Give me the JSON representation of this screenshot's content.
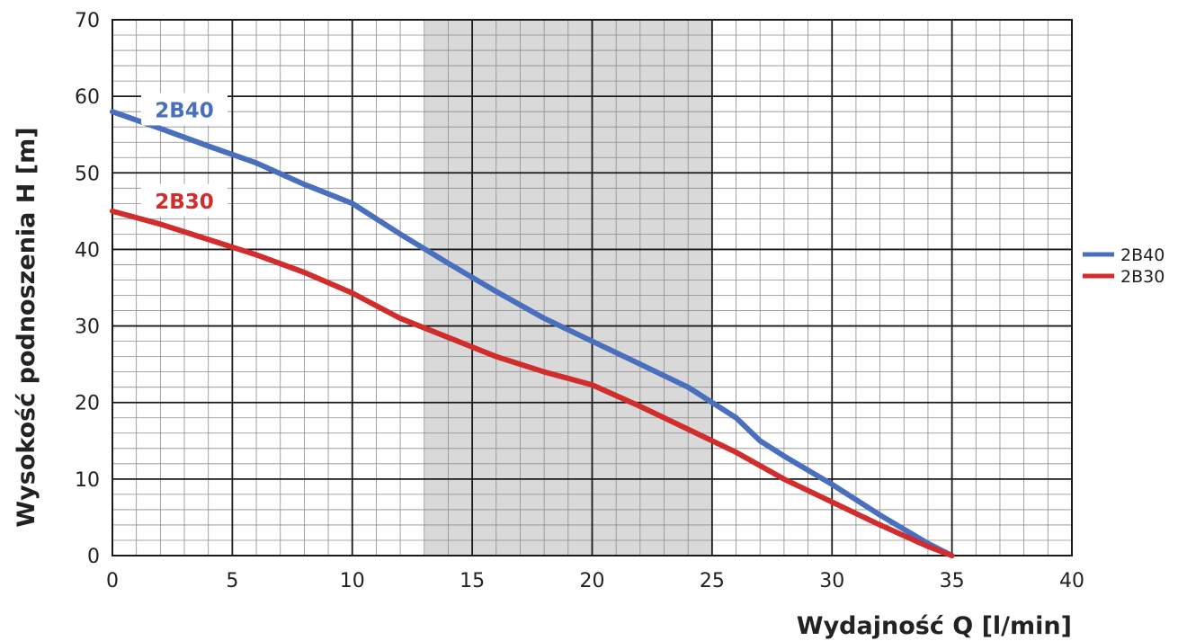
{
  "chart_data": {
    "type": "line",
    "xlabel": "Wydajność Q [l/min]",
    "ylabel": "Wysokość podnoszenia H [m]",
    "xlim": [
      0,
      40
    ],
    "ylim": [
      0,
      70
    ],
    "x_ticks": [
      0,
      5,
      10,
      15,
      20,
      25,
      30,
      35,
      40
    ],
    "y_ticks": [
      0,
      10,
      20,
      30,
      40,
      50,
      60,
      70
    ],
    "x_tick_labels": [
      "0",
      "5",
      "10",
      "15",
      "20",
      "25",
      "30",
      "35",
      "40"
    ],
    "y_tick_labels": [
      "0",
      "10",
      "20",
      "30",
      "40",
      "50",
      "60",
      "70"
    ],
    "grid": true,
    "legend_position": "right",
    "shaded_range": [
      13,
      25
    ],
    "shaded_color": "#d9d9d9",
    "series": [
      {
        "name": "2B40",
        "color": "#4a6fbd",
        "x": [
          0,
          2,
          4,
          6,
          8,
          10,
          12,
          14,
          16,
          18,
          20,
          22,
          24,
          25,
          26,
          27,
          28,
          30,
          32,
          34,
          35
        ],
        "y": [
          58,
          55.8,
          53.5,
          51.3,
          48.5,
          46,
          42,
          38.2,
          34.5,
          31,
          28,
          25,
          22,
          20,
          18,
          15,
          13,
          9.3,
          5.3,
          1.6,
          0
        ]
      },
      {
        "name": "2B30",
        "color": "#d12d2d",
        "x": [
          0,
          2,
          4,
          6,
          8,
          10,
          12,
          14,
          16,
          18,
          20,
          22,
          24,
          25,
          26,
          28,
          30,
          32,
          34,
          35
        ],
        "y": [
          45,
          43.3,
          41.3,
          39.3,
          37,
          34.3,
          31,
          28.5,
          26,
          24,
          22.3,
          19.5,
          16.5,
          15,
          13.5,
          10,
          7,
          4,
          1.2,
          0
        ]
      }
    ],
    "curve_labels": [
      {
        "text": "2B40",
        "series": "2B40",
        "x": 3,
        "y": 58.2
      },
      {
        "text": "2B30",
        "series": "2B30",
        "x": 3,
        "y": 46.3
      }
    ]
  }
}
